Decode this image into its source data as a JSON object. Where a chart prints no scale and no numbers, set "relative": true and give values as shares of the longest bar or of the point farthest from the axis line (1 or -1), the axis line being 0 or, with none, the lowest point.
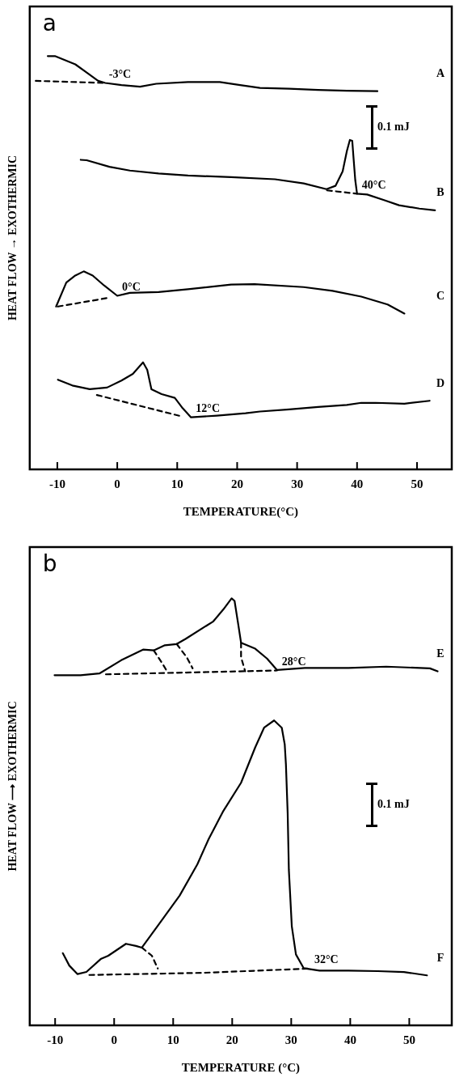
{
  "chart_data": [
    {
      "type": "line",
      "title": "a",
      "xlabel": "TEMPERATURE(°C)",
      "ylabel": "HEAT FLOW → EXOTHERMIC",
      "relative": true,
      "xlim": [
        -14.6,
        55.8
      ],
      "xticks": [
        -10,
        0,
        10,
        20,
        30,
        40,
        50
      ],
      "series": [
        {
          "name": "A",
          "color": "#000000",
          "x": [
            -11.6,
            -10.4,
            -7.0,
            -5.1,
            -3.2,
            -2.0,
            0.7,
            3.8,
            6.5,
            11.8,
            17.1,
            20.5,
            23.8,
            28.7,
            33.5,
            38.3,
            43.4
          ],
          "values": [
            1.0,
            1.0,
            0.98,
            0.96,
            0.94,
            0.935,
            0.93,
            0.926,
            0.933,
            0.937,
            0.937,
            0.93,
            0.923,
            0.921,
            0.918,
            0.916,
            0.915
          ]
        },
        {
          "color": "#000000",
          "line_style": "dashed",
          "x": [
            -13.6,
            -2.2
          ],
          "values": [
            0.94,
            0.935
          ]
        },
        {
          "name": "B",
          "color": "#000000",
          "x": [
            -6.1,
            -5.1,
            -1.3,
            2.1,
            6.9,
            11.8,
            19.0,
            26.3,
            31.1,
            34.9,
            36.4,
            37.6,
            38.3,
            38.8,
            39.2,
            39.4,
            39.7,
            40.0,
            41.7,
            44.6,
            47.0,
            50.4,
            53.0
          ],
          "values": [
            0.749,
            0.748,
            0.732,
            0.723,
            0.716,
            0.711,
            0.707,
            0.702,
            0.692,
            0.678,
            0.686,
            0.721,
            0.77,
            0.797,
            0.795,
            0.756,
            0.7,
            0.667,
            0.665,
            0.651,
            0.639,
            0.631,
            0.627
          ]
        },
        {
          "color": "#000000",
          "line_style": "dashed",
          "x": [
            35.0,
            40.0
          ],
          "values": [
            0.675,
            0.667
          ]
        },
        {
          "name": "C",
          "color": "#000000",
          "x": [
            -10.2,
            -8.5,
            -7.0,
            -5.6,
            -4.1,
            -2.2,
            0.0,
            2.1,
            6.9,
            11.8,
            19.0,
            22.9,
            31.1,
            35.9,
            40.7,
            45.1,
            47.9
          ],
          "values": [
            0.394,
            0.452,
            0.469,
            0.479,
            0.469,
            0.445,
            0.42,
            0.427,
            0.429,
            0.436,
            0.447,
            0.448,
            0.441,
            0.432,
            0.418,
            0.399,
            0.377
          ]
        },
        {
          "color": "#000000",
          "line_style": "dashed",
          "x": [
            -9.9,
            -1.5
          ],
          "values": [
            0.394,
            0.415
          ]
        },
        {
          "name": "D",
          "color": "#000000",
          "x": [
            -9.9,
            -7.5,
            -4.6,
            -1.7,
            0.7,
            2.6,
            4.3,
            5.0,
            5.7,
            7.4,
            9.6,
            10.8,
            12.3,
            16.6,
            21.4,
            23.8,
            28.7,
            33.5,
            38.3,
            40.7,
            43.1,
            47.9,
            52.1
          ],
          "values": [
            0.217,
            0.203,
            0.194,
            0.198,
            0.215,
            0.231,
            0.259,
            0.241,
            0.194,
            0.182,
            0.173,
            0.15,
            0.126,
            0.13,
            0.136,
            0.14,
            0.145,
            0.151,
            0.156,
            0.161,
            0.161,
            0.159,
            0.166
          ]
        },
        {
          "color": "#000000",
          "line_style": "dashed",
          "x": [
            -3.4,
            10.8
          ],
          "values": [
            0.18,
            0.128
          ]
        }
      ],
      "annotations": [
        {
          "text": "-3°C",
          "x": -2.2,
          "y": 0.935
        },
        {
          "text": "40°C",
          "x": 40.0,
          "y": 0.667
        },
        {
          "text": "0°C",
          "x": 0.0,
          "y": 0.42
        },
        {
          "text": "12°C",
          "x": 12.3,
          "y": 0.126
        },
        "0.1 mJ"
      ]
    },
    {
      "type": "line",
      "title": "b",
      "xlabel": "TEMPERATURE (°C)",
      "ylabel": "HEAT FLOW ⟶ EXOTHERMIC",
      "relative": true,
      "xlim": [
        -14.3,
        57.2
      ],
      "xticks": [
        -10,
        0,
        10,
        20,
        30,
        40,
        50
      ],
      "series": [
        {
          "name": "E",
          "color": "#000000",
          "x": [
            -10.1,
            -5.7,
            -2.5,
            1.2,
            4.9,
            6.7,
            8.6,
            10.6,
            12.1,
            16.8,
            18.5,
            19.9,
            20.4,
            21.0,
            21.5,
            23.9,
            25.9,
            27.6,
            32.3,
            39.7,
            46.1,
            53.5,
            54.8
          ],
          "values": [
            0.82,
            0.82,
            0.824,
            0.855,
            0.88,
            0.878,
            0.89,
            0.893,
            0.905,
            0.946,
            0.974,
            1.0,
            0.994,
            0.941,
            0.896,
            0.882,
            0.859,
            0.832,
            0.837,
            0.837,
            0.84,
            0.836,
            0.829
          ]
        },
        {
          "color": "#000000",
          "line_style": "dashed",
          "x": [
            -1.4,
            27.6
          ],
          "values": [
            0.822,
            0.831
          ]
        },
        {
          "color": "#000000",
          "line_style": "dashed",
          "x": [
            6.7,
            8.1,
            9.1
          ],
          "values": [
            0.878,
            0.849,
            0.826
          ]
        },
        {
          "color": "#000000",
          "line_style": "dashed",
          "x": [
            10.6,
            12.3,
            13.3
          ],
          "values": [
            0.893,
            0.862,
            0.836
          ]
        },
        {
          "color": "#000000",
          "line_style": "dashed",
          "x": [
            21.5,
            21.5,
            22.2
          ],
          "values": [
            0.896,
            0.862,
            0.829
          ]
        },
        {
          "name": "F",
          "color": "#000000",
          "x": [
            -8.7,
            -7.6,
            -6.2,
            -4.7,
            -2.2,
            -1.0,
            2.0,
            3.7,
            4.7,
            7.7,
            11.1,
            14.1,
            16.0,
            18.5,
            21.5,
            23.9,
            25.4,
            27.1,
            28.4,
            28.9,
            29.1,
            29.4,
            29.6,
            30.1,
            30.8,
            32.1,
            34.8,
            39.7,
            44.7,
            49.1,
            53.0
          ],
          "values": [
            0.169,
            0.14,
            0.12,
            0.125,
            0.156,
            0.163,
            0.191,
            0.186,
            0.182,
            0.239,
            0.304,
            0.377,
            0.436,
            0.502,
            0.568,
            0.651,
            0.697,
            0.714,
            0.697,
            0.658,
            0.612,
            0.496,
            0.364,
            0.232,
            0.166,
            0.134,
            0.128,
            0.128,
            0.127,
            0.125,
            0.117
          ]
        },
        {
          "color": "#000000",
          "line_style": "dashed",
          "x": [
            -4.2,
            15.1,
            33.1
          ],
          "values": [
            0.118,
            0.123,
            0.133
          ]
        },
        {
          "color": "#000000",
          "line_style": "dashed",
          "x": [
            4.7,
            6.4,
            7.4
          ],
          "values": [
            0.182,
            0.163,
            0.133
          ]
        }
      ],
      "annotations": [
        {
          "text": "28°C",
          "x": 27.6,
          "y": 0.832
        },
        {
          "text": "32°C",
          "x": 33.1,
          "y": 0.133
        },
        "0.1 mJ"
      ]
    }
  ]
}
